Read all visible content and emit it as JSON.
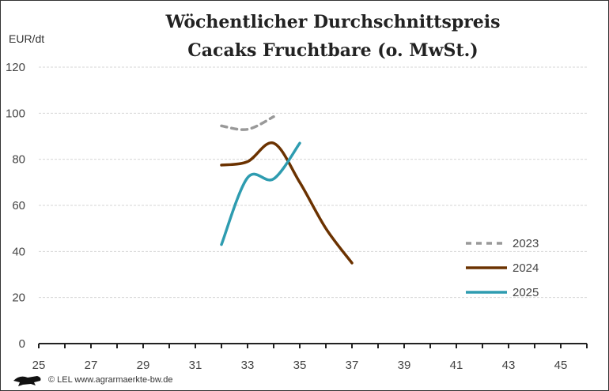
{
  "chart_data": {
    "type": "line",
    "title": [
      "Wöchentlicher Durchschnittspreis",
      "Cacaks Fruchtbare (o. MwSt.)"
    ],
    "ylabel": "EUR/dt",
    "xlabel": "",
    "xlim": [
      25,
      46
    ],
    "ylim": [
      0,
      120
    ],
    "yticks": [
      0,
      20,
      40,
      60,
      80,
      100,
      120
    ],
    "xticklabels": [
      25,
      27,
      29,
      31,
      33,
      35,
      37,
      39,
      41,
      43,
      45
    ],
    "grid": true,
    "legend_position": "right",
    "series": [
      {
        "name": "2023",
        "color": "#999999",
        "dashed": true,
        "x": [
          32,
          33,
          34
        ],
        "values": [
          94.5,
          93,
          98.5
        ]
      },
      {
        "name": "2024",
        "color": "#6b3200",
        "dashed": false,
        "x": [
          32,
          33,
          34,
          35,
          36,
          37
        ],
        "values": [
          77.5,
          79,
          87,
          70,
          50,
          35
        ]
      },
      {
        "name": "2025",
        "color": "#2e9cb0",
        "dashed": false,
        "x": [
          32,
          33,
          34,
          35
        ],
        "values": [
          43,
          72,
          71.5,
          87
        ]
      }
    ]
  },
  "footer": {
    "credit": "© LEL www.agrarmaerkte-bw.de"
  }
}
